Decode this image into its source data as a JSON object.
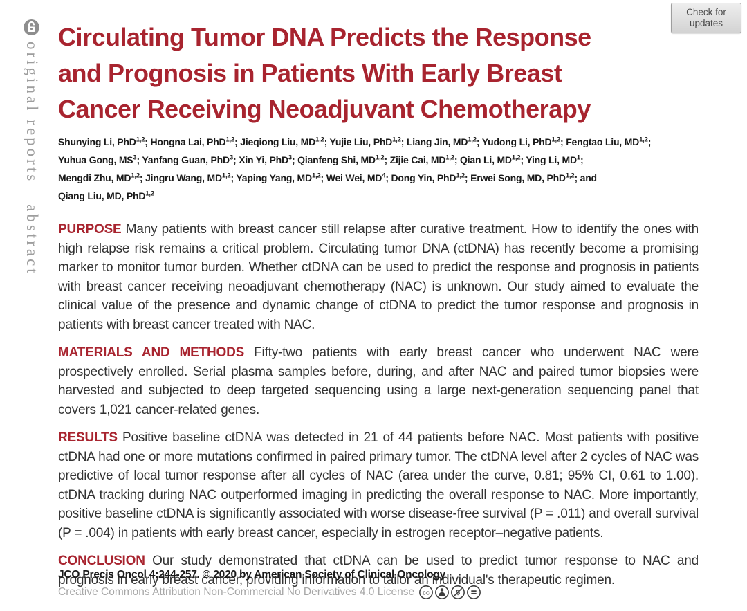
{
  "sidebar": {
    "open_access_icon": "open-access-lock-icon",
    "section_label": "original reports",
    "page_label": "abstract"
  },
  "header": {
    "check_updates_label": "Check for updates",
    "title_lines": [
      "Circulating Tumor DNA Predicts the Response",
      "and Prognosis in Patients With Early Breast",
      "Cancer Receiving Neoadjuvant Chemotherapy"
    ],
    "title_color": "#a8242f"
  },
  "authors": [
    {
      "name": "Shunying Li, PhD",
      "sup": "1,2"
    },
    {
      "name": "Hongna Lai, PhD",
      "sup": "1,2"
    },
    {
      "name": "Jieqiong Liu, MD",
      "sup": "1,2"
    },
    {
      "name": "Yujie Liu, PhD",
      "sup": "1,2"
    },
    {
      "name": "Liang Jin, MD",
      "sup": "1,2"
    },
    {
      "name": "Yudong Li, PhD",
      "sup": "1,2"
    },
    {
      "name": "Fengtao Liu, MD",
      "sup": "1,2",
      "break_after": true
    },
    {
      "name": "Yuhua Gong, MS",
      "sup": "3"
    },
    {
      "name": "Yanfang Guan, PhD",
      "sup": "3"
    },
    {
      "name": "Xin Yi, PhD",
      "sup": "3"
    },
    {
      "name": "Qianfeng Shi, MD",
      "sup": "1,2"
    },
    {
      "name": "Zijie Cai, MD",
      "sup": "1,2"
    },
    {
      "name": "Qian Li, MD",
      "sup": "1,2"
    },
    {
      "name": "Ying Li, MD",
      "sup": "1",
      "break_after": true
    },
    {
      "name": "Mengdi Zhu, MD",
      "sup": "1,2"
    },
    {
      "name": "Jingru Wang, MD",
      "sup": "1,2"
    },
    {
      "name": "Yaping Yang, MD",
      "sup": "1,2"
    },
    {
      "name": "Wei Wei, MD",
      "sup": "4"
    },
    {
      "name": "Dong Yin, PhD",
      "sup": "1,2"
    },
    {
      "name": "Erwei Song, MD, PhD",
      "sup": "1,2",
      "sep": "; and",
      "break_after": true
    },
    {
      "name": "Qiang Liu, MD, PhD",
      "sup": "1,2",
      "sep": ""
    }
  ],
  "abstract": {
    "sections": [
      {
        "label": "PURPOSE",
        "text": "Many patients with breast cancer still relapse after curative treatment. How to identify the ones with high relapse risk remains a critical problem. Circulating tumor DNA (ctDNA) has recently become a promising marker to monitor tumor burden. Whether ctDNA can be used to predict the response and prognosis in patients with breast cancer receiving neoadjuvant chemotherapy (NAC) is unknown. Our study aimed to evaluate the clinical value of the presence and dynamic change of ctDNA to predict the tumor response and prognosis in patients with breast cancer treated with NAC."
      },
      {
        "label": "MATERIALS AND METHODS",
        "text": "Fifty-two patients with early breast cancer who underwent NAC were prospectively enrolled. Serial plasma samples before, during, and after NAC and paired tumor biopsies were harvested and subjected to deep targeted sequencing using a large next-generation sequencing panel that covers 1,021 cancer-related genes."
      },
      {
        "label": "RESULTS",
        "text": "Positive baseline ctDNA was detected in 21 of 44 patients before NAC. Most patients with positive ctDNA had one or more mutations confirmed in paired primary tumor. The ctDNA level after 2 cycles of NAC was predictive of local tumor response after all cycles of NAC (area under the curve, 0.81; 95% CI, 0.61 to 1.00). ctDNA tracking during NAC outperformed imaging in predicting the overall response to NAC. More importantly, positive baseline ctDNA is significantly associated with worse disease-free survival (P = .011) and overall survival (P = .004) in patients with early breast cancer, especially in estrogen receptor–negative patients."
      },
      {
        "label": "CONCLUSION",
        "text": "Our study demonstrated that ctDNA can be used to predict tumor response to NAC and prognosis in early breast cancer, providing information to tailor an individual's therapeutic regimen."
      }
    ]
  },
  "footer": {
    "citation": "JCO Precis Oncol 4:244-257. © 2020 by American Society of Clinical Oncology",
    "license": "Creative Commons Attribution Non-Commercial No Derivatives 4.0 License",
    "license_icons": [
      "cc-icon",
      "cc-by-person-icon",
      "cc-nc-no-dollar-icon",
      "cc-nd-equals-icon"
    ]
  }
}
